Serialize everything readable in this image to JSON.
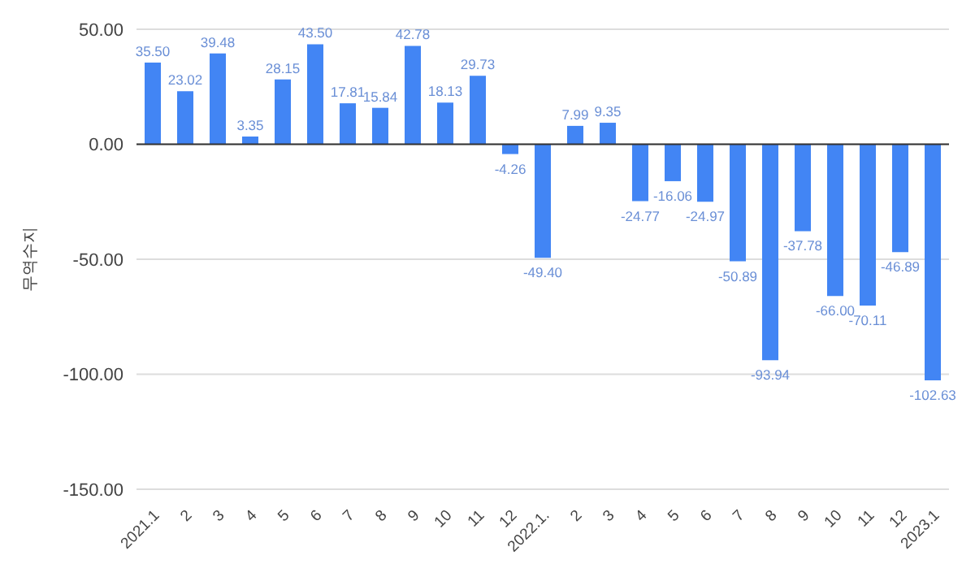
{
  "chart_data": {
    "type": "bar",
    "ylabel": "무역수지",
    "categories": [
      "2021.1",
      "2",
      "3",
      "4",
      "5",
      "6",
      "7",
      "8",
      "9",
      "10",
      "11",
      "12",
      "2022.1.",
      "2",
      "3",
      "4",
      "5",
      "6",
      "7",
      "8",
      "9",
      "10",
      "11",
      "12",
      "2023.1"
    ],
    "values": [
      35.5,
      23.02,
      39.48,
      3.35,
      28.15,
      43.5,
      17.81,
      15.84,
      42.78,
      18.13,
      29.73,
      -4.26,
      -49.4,
      7.99,
      9.35,
      -24.77,
      -16.06,
      -24.97,
      -50.89,
      -93.94,
      -37.78,
      -66,
      -70.11,
      -46.89,
      -102.63
    ],
    "value_labels": [
      "35.50",
      "23.02",
      "39.48",
      "3.35",
      "28.15",
      "43.50",
      "17.81",
      "15.84",
      "42.78",
      "18.13",
      "29.73",
      "-4.26",
      "-49.40",
      "7.99",
      "9.35",
      "-24.77",
      "-16.06",
      "-24.97",
      "-50.89",
      "-93.94",
      "-37.78",
      "-66.00",
      "-70.11",
      "-46.89",
      "-102.63"
    ],
    "color": "#4285f4",
    "ylim": [
      -150,
      50
    ],
    "yticks": [
      {
        "value": -150,
        "label": "-150.00"
      },
      {
        "value": -100,
        "label": "-100.00"
      },
      {
        "value": -50,
        "label": "-50.00"
      },
      {
        "value": 0,
        "label": "0.00"
      },
      {
        "value": 50,
        "label": "50.00"
      }
    ],
    "grid": "y"
  }
}
